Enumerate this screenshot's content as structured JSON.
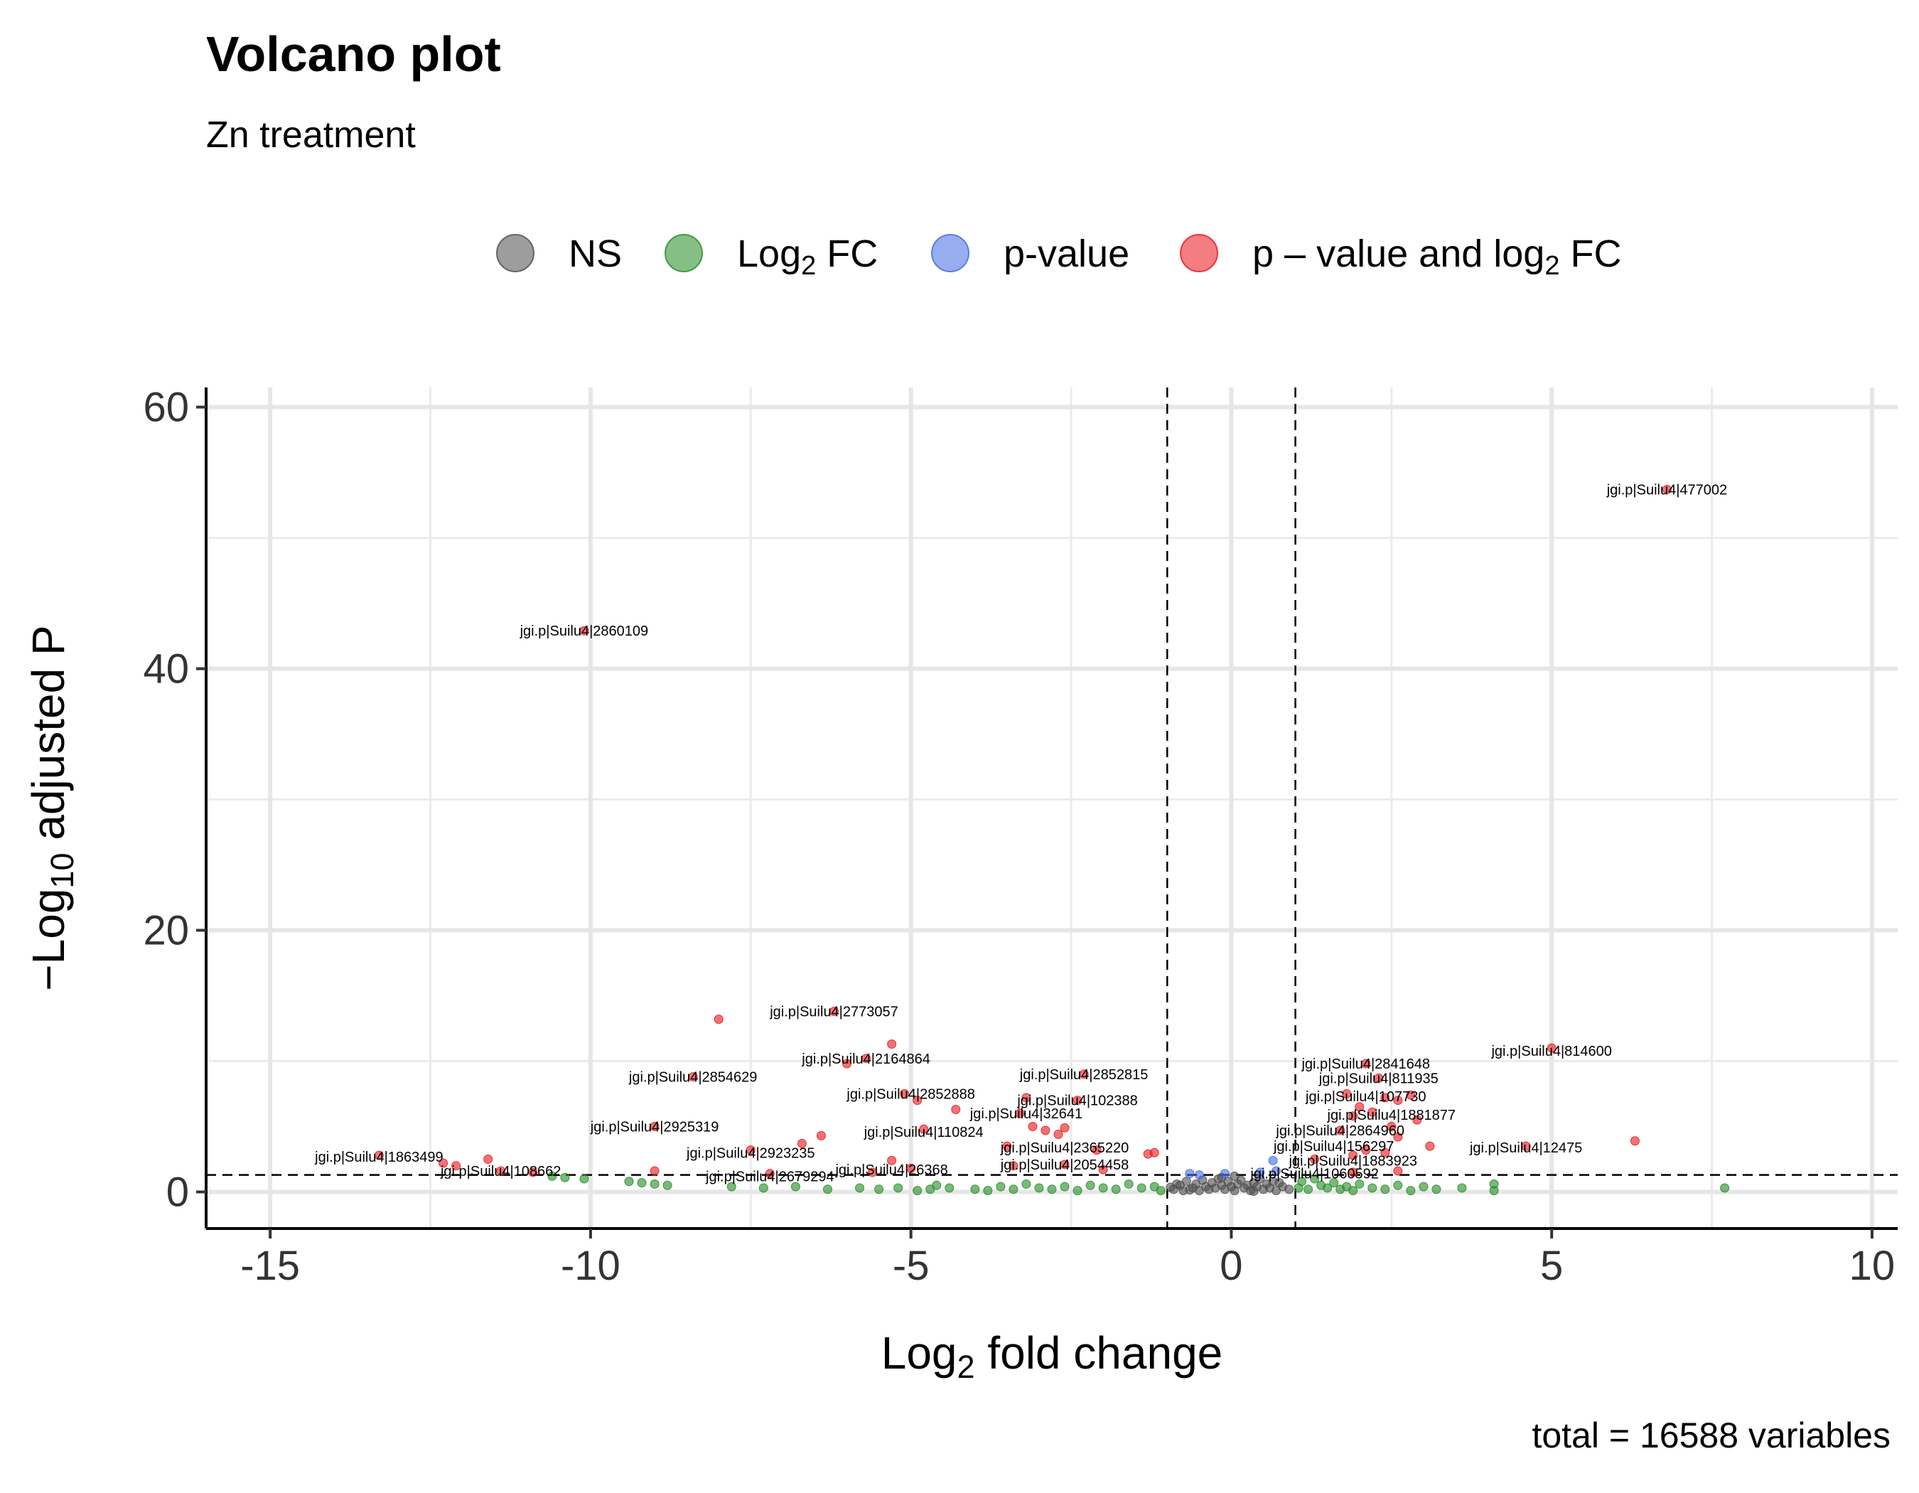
{
  "chart_data": {
    "type": "scatter",
    "title": "Volcano plot",
    "subtitle": "Zn treatment",
    "caption": "total = 16588 variables",
    "xlabel": "Log2 fold change",
    "ylabel": "−Log10 adjusted P",
    "xlim": [
      -16,
      10.4
    ],
    "ylim": [
      -2.8,
      61.5
    ],
    "x_ticks": [
      -15,
      -10,
      -5,
      0,
      5,
      10
    ],
    "x_tick_labels": [
      "-15",
      "-10",
      "-5",
      "0",
      "5",
      "10"
    ],
    "y_ticks": [
      0,
      20,
      40,
      60
    ],
    "y_tick_labels": [
      "0",
      "20",
      "40",
      "60"
    ],
    "grid": true,
    "legend_position": "top",
    "legend": [
      {
        "key": "NS",
        "label": "NS",
        "color": "#4d4d4d"
      },
      {
        "key": "FC",
        "label": "Log2 FC",
        "color": "#228b22"
      },
      {
        "key": "P",
        "label": "p-value",
        "color": "#4169e1"
      },
      {
        "key": "PFC",
        "label": "p – value and log2 FC",
        "color": "#e8141b"
      }
    ],
    "cutoffs": {
      "log2fc": [
        -1,
        1
      ],
      "neg_log10_p": 1.3
    },
    "series": [
      {
        "name": "NS",
        "color": "#4d4d4d",
        "points": [
          [
            -0.9,
            0.2
          ],
          [
            -0.8,
            0.5
          ],
          [
            -0.75,
            0.1
          ],
          [
            -0.7,
            0.8
          ],
          [
            -0.6,
            0.3
          ],
          [
            -0.55,
            0.6
          ],
          [
            -0.5,
            0.1
          ],
          [
            -0.45,
            0.9
          ],
          [
            -0.4,
            0.4
          ],
          [
            -0.35,
            0.2
          ],
          [
            -0.3,
            0.7
          ],
          [
            -0.25,
            0.3
          ],
          [
            -0.2,
            1.0
          ],
          [
            -0.15,
            0.5
          ],
          [
            -0.1,
            0.2
          ],
          [
            -0.05,
            0.8
          ],
          [
            0.0,
            0.4
          ],
          [
            0.05,
            0.1
          ],
          [
            0.1,
            0.6
          ],
          [
            0.15,
            0.9
          ],
          [
            0.2,
            0.3
          ],
          [
            0.25,
            0.5
          ],
          [
            0.3,
            0.1
          ],
          [
            0.35,
            0.7
          ],
          [
            0.4,
            0.4
          ],
          [
            0.45,
            1.0
          ],
          [
            0.5,
            0.2
          ],
          [
            0.55,
            0.6
          ],
          [
            0.6,
            0.3
          ],
          [
            0.65,
            0.8
          ],
          [
            0.7,
            0.1
          ],
          [
            0.8,
            0.4
          ],
          [
            0.9,
            0.2
          ],
          [
            -0.85,
            0.6
          ],
          [
            -0.65,
            0.15
          ],
          [
            -0.15,
            1.1
          ],
          [
            0.05,
            1.2
          ],
          [
            0.35,
            0.05
          ],
          [
            0.75,
            0.7
          ],
          [
            -0.95,
            0.35
          ]
        ]
      },
      {
        "name": "Log2 FC",
        "color": "#228b22",
        "points": [
          [
            -10.6,
            1.2
          ],
          [
            -10.4,
            1.1
          ],
          [
            -10.1,
            1.0
          ],
          [
            -9.4,
            0.8
          ],
          [
            -9.2,
            0.7
          ],
          [
            -9.0,
            0.6
          ],
          [
            -8.8,
            0.5
          ],
          [
            -7.8,
            0.4
          ],
          [
            -7.3,
            0.3
          ],
          [
            -6.8,
            0.4
          ],
          [
            -6.3,
            0.2
          ],
          [
            -5.8,
            0.3
          ],
          [
            -5.5,
            0.2
          ],
          [
            -5.2,
            0.3
          ],
          [
            -4.9,
            0.1
          ],
          [
            -4.7,
            0.2
          ],
          [
            -4.6,
            0.5
          ],
          [
            -4.4,
            0.3
          ],
          [
            -4.0,
            0.2
          ],
          [
            -3.8,
            0.1
          ],
          [
            -3.6,
            0.4
          ],
          [
            -3.4,
            0.2
          ],
          [
            -3.2,
            0.6
          ],
          [
            -3.0,
            0.3
          ],
          [
            -2.8,
            0.2
          ],
          [
            -2.6,
            0.4
          ],
          [
            -2.4,
            0.1
          ],
          [
            -2.2,
            0.5
          ],
          [
            -2.0,
            0.3
          ],
          [
            -1.8,
            0.2
          ],
          [
            -1.6,
            0.6
          ],
          [
            -1.4,
            0.3
          ],
          [
            -1.2,
            0.4
          ],
          [
            -1.1,
            0.1
          ],
          [
            1.05,
            0.3
          ],
          [
            1.1,
            0.8
          ],
          [
            1.2,
            0.2
          ],
          [
            1.3,
            1.0
          ],
          [
            1.4,
            0.5
          ],
          [
            1.5,
            0.3
          ],
          [
            1.6,
            0.7
          ],
          [
            1.7,
            0.2
          ],
          [
            1.8,
            0.4
          ],
          [
            1.9,
            0.1
          ],
          [
            2.0,
            0.6
          ],
          [
            2.2,
            0.3
          ],
          [
            2.4,
            0.2
          ],
          [
            2.6,
            0.5
          ],
          [
            2.8,
            0.1
          ],
          [
            3.0,
            0.4
          ],
          [
            3.2,
            0.2
          ],
          [
            3.6,
            0.3
          ],
          [
            4.1,
            0.1
          ],
          [
            4.1,
            0.6
          ],
          [
            7.7,
            0.3
          ]
        ]
      },
      {
        "name": "p-value",
        "color": "#4169e1",
        "points": [
          [
            -0.65,
            1.4
          ],
          [
            -0.5,
            1.3
          ],
          [
            -0.1,
            1.4
          ],
          [
            0.45,
            1.5
          ],
          [
            0.65,
            2.4
          ],
          [
            0.7,
            1.6
          ]
        ]
      },
      {
        "name": "p – value and log2 FC",
        "color": "#e8141b",
        "points": [
          [
            6.8,
            53.7
          ],
          [
            -10.1,
            42.9
          ],
          [
            -8.0,
            13.2
          ],
          [
            -6.2,
            13.8
          ],
          [
            -5.7,
            10.2
          ],
          [
            -5.3,
            11.3
          ],
          [
            -6.0,
            9.8
          ],
          [
            -4.9,
            7.0
          ],
          [
            -5.1,
            7.5
          ],
          [
            -4.3,
            6.3
          ],
          [
            -8.4,
            8.8
          ],
          [
            -3.2,
            7.2
          ],
          [
            -2.4,
            7.0
          ],
          [
            -2.3,
            9.0
          ],
          [
            -3.3,
            6.0
          ],
          [
            -3.1,
            5.0
          ],
          [
            -2.9,
            4.7
          ],
          [
            -2.7,
            4.4
          ],
          [
            -2.6,
            4.9
          ],
          [
            -2.1,
            3.2
          ],
          [
            -1.3,
            2.9
          ],
          [
            -1.2,
            3.0
          ],
          [
            -3.5,
            3.5
          ],
          [
            -3.4,
            2.0
          ],
          [
            -2.6,
            2.1
          ],
          [
            -2.0,
            1.7
          ],
          [
            -4.8,
            4.8
          ],
          [
            -6.7,
            3.7
          ],
          [
            -6.4,
            4.3
          ],
          [
            -7.5,
            3.2
          ],
          [
            -5.3,
            2.4
          ],
          [
            -5.0,
            1.8
          ],
          [
            -9.0,
            1.6
          ],
          [
            -9.0,
            5.0
          ],
          [
            -13.3,
            2.8
          ],
          [
            -12.3,
            2.2
          ],
          [
            -12.1,
            2.0
          ],
          [
            -11.6,
            2.5
          ],
          [
            -11.4,
            1.6
          ],
          [
            -10.9,
            1.5
          ],
          [
            -7.2,
            1.4
          ],
          [
            -5.6,
            1.5
          ],
          [
            2.1,
            9.8
          ],
          [
            2.3,
            8.7
          ],
          [
            1.8,
            7.5
          ],
          [
            2.0,
            6.5
          ],
          [
            2.2,
            6.1
          ],
          [
            2.4,
            7.2
          ],
          [
            2.6,
            7.0
          ],
          [
            2.8,
            7.4
          ],
          [
            2.5,
            5.0
          ],
          [
            1.9,
            5.8
          ],
          [
            2.6,
            4.2
          ],
          [
            2.1,
            3.2
          ],
          [
            1.3,
            2.5
          ],
          [
            1.9,
            2.8
          ],
          [
            2.4,
            3.0
          ],
          [
            3.1,
            3.5
          ],
          [
            2.6,
            1.6
          ],
          [
            1.9,
            1.5
          ],
          [
            5.0,
            11.0
          ],
          [
            4.6,
            3.5
          ],
          [
            6.3,
            3.9
          ],
          [
            1.7,
            4.7
          ],
          [
            2.9,
            5.5
          ]
        ]
      }
    ],
    "labels": [
      {
        "text": "jgi.p|Suilu4|477002",
        "x": 6.8,
        "y": 53.7
      },
      {
        "text": "jgi.p|Suilu4|2860109",
        "x": -10.1,
        "y": 42.9
      },
      {
        "text": "jgi.p|Suilu4|2773057",
        "x": -6.2,
        "y": 13.8
      },
      {
        "text": "jgi.p|Suilu4|2164864",
        "x": -5.7,
        "y": 10.2
      },
      {
        "text": "jgi.p|Suilu4|2854629",
        "x": -8.4,
        "y": 8.8
      },
      {
        "text": "jgi.p|Suilu4|2852815",
        "x": -2.3,
        "y": 9.0
      },
      {
        "text": "jgi.p|Suilu4|2852888",
        "x": -5.0,
        "y": 7.5
      },
      {
        "text": "jgi.p|Suilu4|102388",
        "x": -2.4,
        "y": 7.0
      },
      {
        "text": "jgi.p|Suilu4|32641",
        "x": -3.2,
        "y": 6.0
      },
      {
        "text": "jgi.p|Suilu4|2925319",
        "x": -9.0,
        "y": 5.0
      },
      {
        "text": "jgi.p|Suilu4|110824",
        "x": -4.8,
        "y": 4.6
      },
      {
        "text": "jgi.p|Suilu4|2365220",
        "x": -2.6,
        "y": 3.4
      },
      {
        "text": "jgi.p|Suilu4|2923235",
        "x": -7.5,
        "y": 3.0
      },
      {
        "text": "jgi.p|Suilu4|2054458",
        "x": -2.6,
        "y": 2.1
      },
      {
        "text": "jgi.p|Suilu4|1863499",
        "x": -13.3,
        "y": 2.7
      },
      {
        "text": "jgi.p|Suilu4|108662",
        "x": -11.4,
        "y": 1.6
      },
      {
        "text": "jgi.p|Suilu4|26368",
        "x": -5.3,
        "y": 1.7
      },
      {
        "text": "jgi.p|Suilu4|2679294",
        "x": -7.2,
        "y": 1.2
      },
      {
        "text": "jgi.p|Suilu4|2841648",
        "x": 2.1,
        "y": 9.8
      },
      {
        "text": "jgi.p|Suilu4|811935",
        "x": 2.3,
        "y": 8.7
      },
      {
        "text": "jgi.p|Suilu4|107730",
        "x": 2.1,
        "y": 7.3
      },
      {
        "text": "jgi.p|Suilu4|1881877",
        "x": 2.5,
        "y": 5.9
      },
      {
        "text": "jgi.p|Suilu4|2864960",
        "x": 1.7,
        "y": 4.7
      },
      {
        "text": "jgi.p|Suilu4|156297",
        "x": 1.6,
        "y": 3.5
      },
      {
        "text": "jgi.p|Suilu4|1883923",
        "x": 1.9,
        "y": 2.4
      },
      {
        "text": "jgi.p|Suilu4|1060592",
        "x": 1.3,
        "y": 1.4
      },
      {
        "text": "jgi.p|Suilu4|814600",
        "x": 5.0,
        "y": 10.8
      },
      {
        "text": "jgi.p|Suilu4|12475",
        "x": 4.6,
        "y": 3.4
      }
    ]
  }
}
